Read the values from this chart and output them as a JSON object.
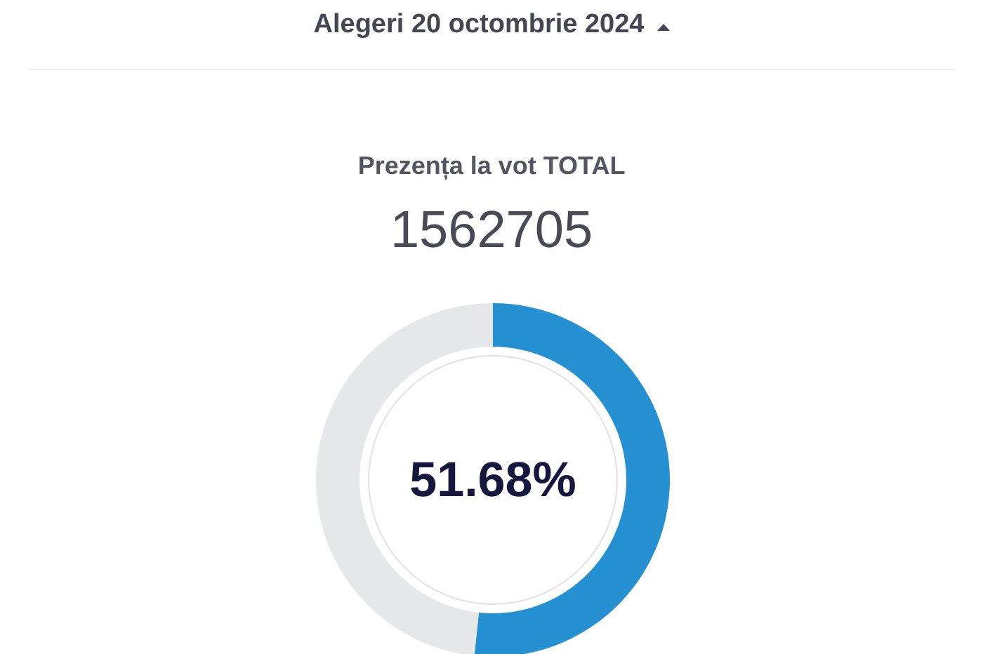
{
  "chart_data": {
    "type": "donut",
    "title": "Alegeri 20 octombrie 2024",
    "subtitle": "Prezența la vot TOTAL",
    "annotations": [
      "1562705"
    ],
    "categories": [
      null,
      null
    ],
    "values": [
      51.68,
      48.32
    ],
    "colors": [
      "#2590d2",
      "#e6e7e9"
    ],
    "value_labels": [
      "51.68%",
      null
    ]
  }
}
